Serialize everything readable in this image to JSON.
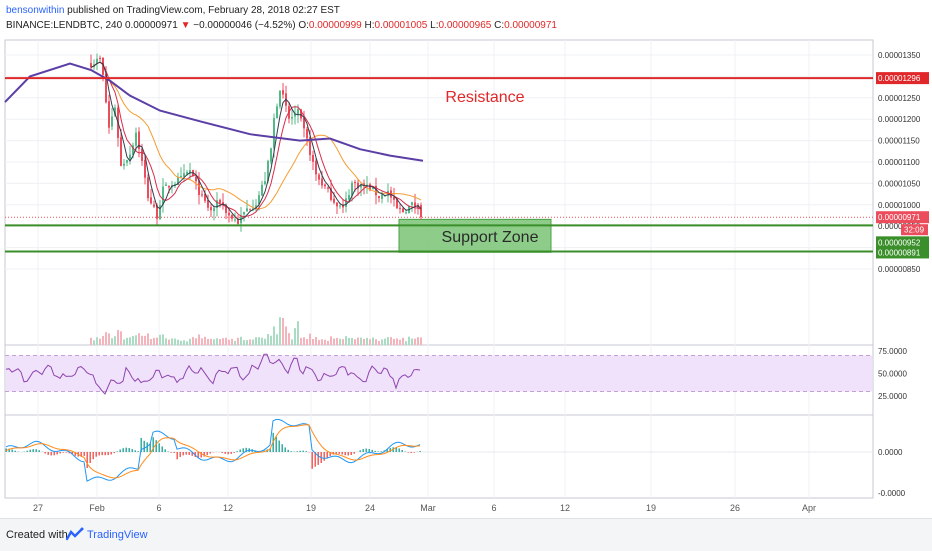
{
  "header": {
    "author": "bensonwithin",
    "published": " published on TradingView.com, February 28, 2018 02:27 EST",
    "symbol": "BINANCE:LENDBTC, 240",
    "last_value": "0.00000971",
    "change_arrow": "▼",
    "change": "−0.00000046 (−4.52%)",
    "ohlc": {
      "o_label": "O:",
      "o": "0.00000999",
      "h_label": "H:",
      "h": "0.00001005",
      "l_label": "L:",
      "l": "0.00000965",
      "c_label": "C:",
      "c": "0.00000971"
    }
  },
  "colors": {
    "resistance": "#e0282a",
    "support": "#3a8f2a",
    "support_zone_fill": "#79c474",
    "bull": "#53b987",
    "bear": "#eb4d5c",
    "ma_long": "#5b3ea6",
    "ma_orange": "#f59d31",
    "ma_red": "#d82c4a",
    "ma_dark": "#333c4f",
    "rsi": "#8e44ad",
    "rsi_band": "#f0e2fb",
    "macd": "#2196f3",
    "signal": "#ff8c1a"
  },
  "chart_data": {
    "type": "candlestick",
    "price_axis": {
      "ticks": [
        "0.00001350",
        "0.00001300",
        "0.00001250",
        "0.00001200",
        "0.00001150",
        "0.00001100",
        "0.00001050",
        "0.00001000",
        "0.00000950",
        "0.00000900",
        "0.00000850"
      ]
    },
    "badges": {
      "resistance": "0.00001296",
      "last_price": "0.00000971",
      "countdown": "32:09",
      "support_upper": "0.00000952",
      "support_lower": "0.00000891"
    },
    "annotations": {
      "resistance_label": "Resistance",
      "support_zone_label": "Support Zone"
    },
    "levels": {
      "resistance": 1.296e-05,
      "support_upper": 9.52e-06,
      "support_lower": 8.91e-06,
      "last": 9.71e-06
    },
    "x_axis_labels": [
      "27",
      "Feb",
      "6",
      "12",
      "19",
      "24",
      "Mar",
      "6",
      "12",
      "19",
      "26",
      "Apr"
    ],
    "rsi": {
      "ticks": [
        "75.0000",
        "50.0000",
        "25.0000"
      ],
      "upper_band": 70,
      "lower_band": 30
    },
    "macd": {
      "ticks": [
        "0.0000",
        "-0.0000"
      ]
    }
  },
  "footer": {
    "created_with": "Created with",
    "brand": "TradingView"
  }
}
